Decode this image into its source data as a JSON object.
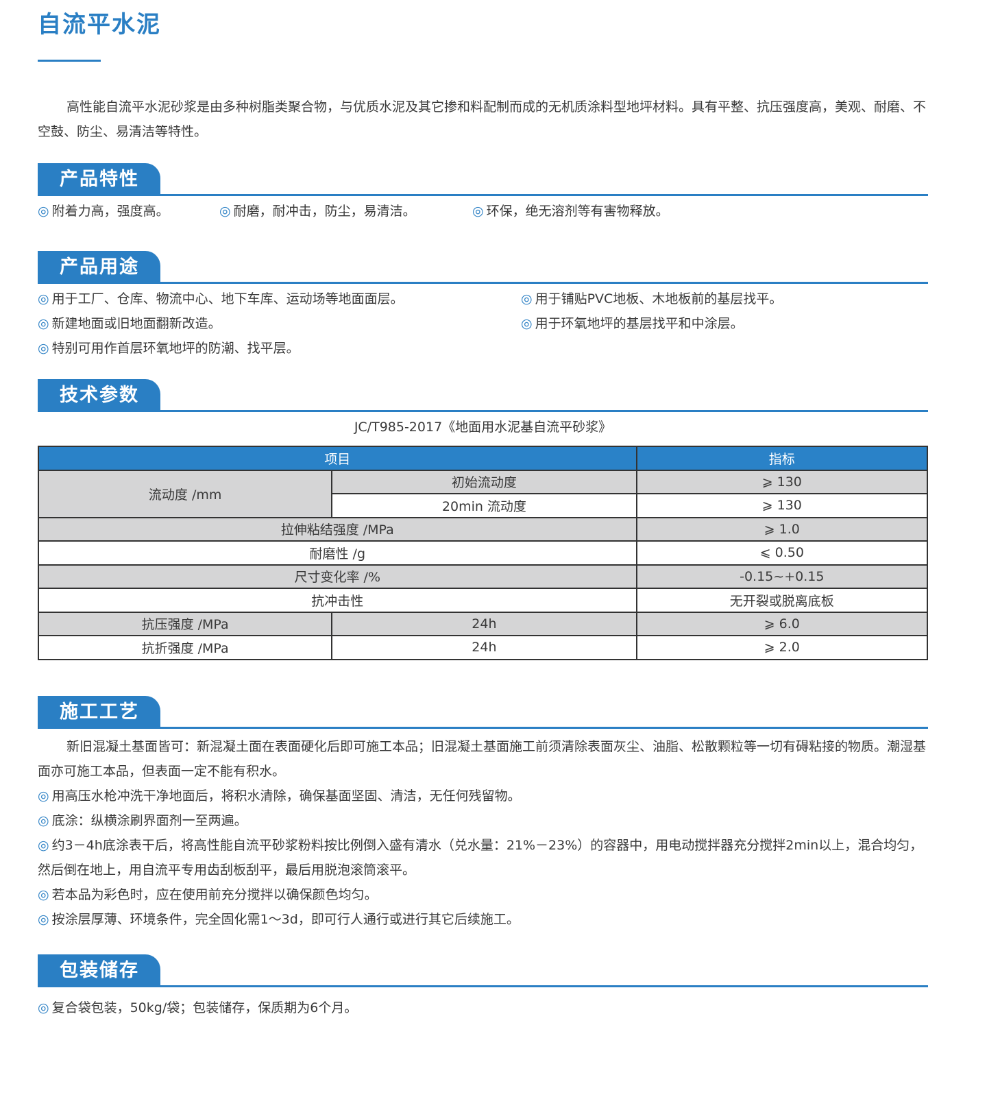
{
  "title": "自流平水泥",
  "intro": "高性能自流平水泥砂浆是由多种树脂类聚合物，与优质水泥及其它掺和料配制而成的无机质涂料型地坪材料。具有平整、抗压强度高，美观、耐磨、不空鼓、防尘、易清洁等特性。",
  "bullet": "◎",
  "features": {
    "heading": "产品特性",
    "items": [
      "附着力高，强度高。",
      "耐磨，耐冲击，防尘，易清洁。",
      "环保，绝无溶剂等有害物释放。"
    ]
  },
  "uses": {
    "heading": "产品用途",
    "items": [
      "用于工厂、仓库、物流中心、地下车库、运动场等地面面层。",
      "用于铺贴PVC地板、木地板前的基层找平。",
      "新建地面或旧地面翻新改造。",
      "用于环氧地坪的基层找平和中涂层。",
      "特别可用作首层环氧地坪的防潮、找平层。"
    ]
  },
  "params": {
    "heading": "技术参数",
    "standard": "JC/T985-2017《地面用水泥基自流平砂浆》",
    "headers": [
      "项目",
      "指标"
    ],
    "rows": {
      "flow": "流动度 /mm",
      "flow_init": "初始流动度",
      "flow_init_v": "⩾ 130",
      "flow_20": "20min 流动度",
      "flow_20_v": "⩾ 130",
      "tensile": "拉伸粘结强度 /MPa",
      "tensile_v": "⩾ 1.0",
      "wear": "耐磨性 /g",
      "wear_v": "⩽ 0.50",
      "dim": "尺寸变化率 /%",
      "dim_v": "-0.15~+0.15",
      "impact": "抗冲击性",
      "impact_v": "无开裂或脱离底板",
      "comp": "抗压强度 /MPa",
      "comp_t": "24h",
      "comp_v": "⩾ 6.0",
      "flex": "抗折强度 /MPa",
      "flex_t": "24h",
      "flex_v": "⩾ 2.0"
    }
  },
  "process": {
    "heading": "施工工艺",
    "intro": "新旧混凝土基面皆可：新混凝土面在表面硬化后即可施工本品；旧混凝土基面施工前须清除表面灰尘、油脂、松散颗粒等一切有碍粘接的物质。潮湿基面亦可施工本品，但表面一定不能有积水。",
    "items": [
      "用高压水枪冲洗干净地面后，将积水清除，确保基面坚固、清洁，无任何残留物。",
      "底涂：纵横涂刷界面剂一至两遍。",
      "约3－4h底涂表干后，将高性能自流平砂浆粉料按比例倒入盛有清水（兑水量：21%－23%）的容器中，用电动搅拌器充分搅拌2min以上，混合均匀，然后倒在地上，用自流平专用齿刮板刮平，最后用脱泡滚筒滚平。",
      "若本品为彩色时，应在使用前充分搅拌以确保颜色均匀。",
      "按涂层厚薄、环境条件，完全固化需1～3d，即可行人通行或进行其它后续施工。"
    ]
  },
  "packaging": {
    "heading": "包装储存",
    "items": [
      "复合袋包装，50kg/袋；包装储存，保质期为6个月。"
    ]
  },
  "colors": {
    "accent": "#2a7fc4",
    "table_gray": "#d5d5d6"
  }
}
